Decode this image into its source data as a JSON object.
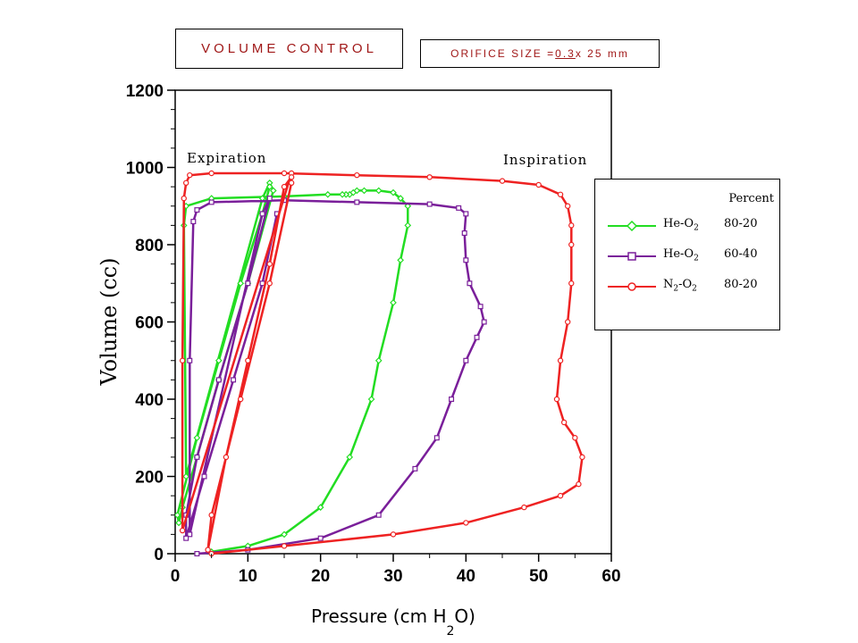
{
  "header": {
    "mode_label": "VOLUME CONTROL",
    "orifice_prefix": "ORIFICE SIZE =",
    "orifice_value": "0.3",
    "orifice_suffix": " x 25 mm"
  },
  "legend": {
    "header": "Percent",
    "items": [
      {
        "gas": "He-O",
        "sub1": "2",
        "mid": "",
        "sub2": "",
        "percent": "80-20",
        "color": "#22dd22"
      },
      {
        "gas": "He-O",
        "sub1": "2",
        "mid": "",
        "sub2": "",
        "percent": "60-40",
        "color": "#7a1f9a"
      },
      {
        "gas": "N",
        "sub1": "2",
        "mid": "-O",
        "sub2": "2",
        "percent": "80-20",
        "color": "#ee2222"
      }
    ]
  },
  "chart_data": {
    "type": "line",
    "title": "",
    "xlabel": "Pressure (cm H",
    "xlabel_sub": "2",
    "xlabel_end": "O)",
    "ylabel": "Volume (cc)",
    "xlim": [
      0,
      60
    ],
    "ylim": [
      0,
      1200
    ],
    "xticks": [
      0,
      10,
      20,
      30,
      40,
      50,
      60
    ],
    "yticks": [
      0,
      200,
      400,
      600,
      800,
      1000,
      1200
    ],
    "grid": false,
    "legend_position": "right",
    "annotations": [
      {
        "text": "Expiration",
        "x": 1.5,
        "y": 1015
      },
      {
        "text": "Inspiration",
        "x": 45,
        "y": 1015
      }
    ],
    "series": [
      {
        "name": "He-O2 80-20",
        "color": "#22dd22",
        "marker": "diamond",
        "x": [
          5,
          10,
          15,
          20,
          24,
          27,
          28,
          30,
          31,
          32,
          32,
          31,
          30,
          28,
          26,
          25,
          24.5,
          24,
          23.5,
          23,
          21,
          15,
          5,
          1.5,
          1.2,
          1.5,
          12,
          13,
          13.5,
          10,
          6,
          3,
          1,
          0.5,
          0.3,
          3,
          6,
          9,
          12,
          13
        ],
        "y": [
          5,
          20,
          50,
          120,
          250,
          400,
          500,
          650,
          760,
          850,
          900,
          920,
          935,
          940,
          940,
          940,
          935,
          930,
          930,
          930,
          930,
          925,
          920,
          900,
          850,
          200,
          920,
          960,
          940,
          700,
          450,
          250,
          120,
          80,
          100,
          300,
          500,
          700,
          880,
          950
        ]
      },
      {
        "name": "He-O2 60-40",
        "color": "#7a1f9a",
        "marker": "square",
        "x": [
          3,
          10,
          20,
          28,
          33,
          36,
          38,
          40,
          41.5,
          42.5,
          42,
          40.5,
          40,
          39.8,
          40,
          39,
          35,
          25,
          15,
          5,
          3,
          2.5,
          2,
          2,
          12,
          13,
          10,
          6,
          3,
          1.5,
          1.5,
          4,
          8,
          12,
          14
        ],
        "y": [
          0,
          10,
          40,
          100,
          220,
          300,
          400,
          500,
          560,
          600,
          640,
          700,
          760,
          830,
          880,
          895,
          905,
          910,
          915,
          910,
          890,
          860,
          500,
          50,
          880,
          920,
          700,
          450,
          250,
          100,
          40,
          200,
          450,
          700,
          880
        ]
      },
      {
        "name": "N2-O2 80-20",
        "color": "#ee2222",
        "marker": "circle",
        "x": [
          5,
          15,
          30,
          40,
          48,
          53,
          55.5,
          56,
          55,
          53.5,
          52.5,
          53,
          54,
          54.5,
          54.5,
          54.5,
          54,
          53,
          50,
          45,
          35,
          25,
          15,
          5,
          2,
          1.5,
          1.2,
          1,
          1,
          16,
          16,
          13,
          9,
          5,
          4.5,
          7,
          10,
          13,
          15,
          16
        ],
        "y": [
          0,
          20,
          50,
          80,
          120,
          150,
          180,
          250,
          300,
          340,
          400,
          500,
          600,
          700,
          800,
          850,
          900,
          930,
          955,
          965,
          975,
          980,
          985,
          985,
          980,
          960,
          920,
          500,
          60,
          985,
          960,
          700,
          400,
          100,
          10,
          250,
          500,
          750,
          950,
          975
        ]
      }
    ]
  }
}
